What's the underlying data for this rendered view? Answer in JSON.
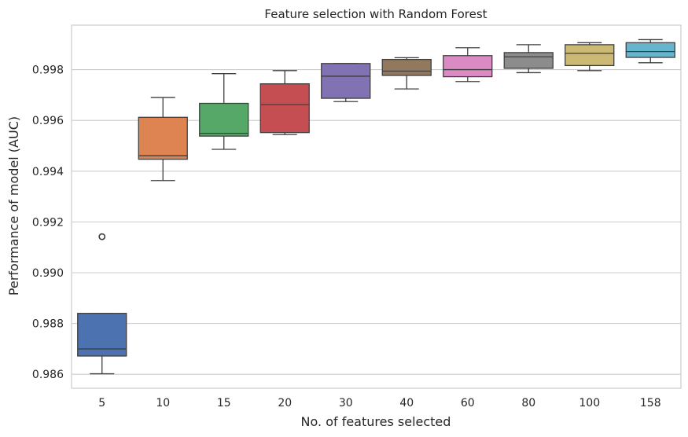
{
  "chart_data": {
    "type": "box",
    "title": "Feature selection with Random Forest",
    "xlabel": "No. of features selected",
    "ylabel": "Performance of model (AUC)",
    "ylim": [
      0.98545,
      0.99975
    ],
    "yticks": [
      "0.986",
      "0.988",
      "0.990",
      "0.992",
      "0.994",
      "0.996",
      "0.998"
    ],
    "grid": "horizontal",
    "categories": [
      "5",
      "10",
      "15",
      "20",
      "30",
      "40",
      "60",
      "80",
      "100",
      "158"
    ],
    "boxes": [
      {
        "category": "5",
        "whisker_low": 0.98602,
        "q1": 0.98672,
        "median": 0.987,
        "q3": 0.9884,
        "whisker_high": 0.9884,
        "outliers": [
          0.99142
        ],
        "color": "#4c72b0"
      },
      {
        "category": "10",
        "whisker_low": 0.99363,
        "q1": 0.99447,
        "median": 0.99461,
        "q3": 0.99612,
        "whisker_high": 0.9969,
        "outliers": [],
        "color": "#dd8452"
      },
      {
        "category": "15",
        "whisker_low": 0.99486,
        "q1": 0.99538,
        "median": 0.99549,
        "q3": 0.99667,
        "whisker_high": 0.99784,
        "outliers": [],
        "color": "#55a868"
      },
      {
        "category": "20",
        "whisker_low": 0.99544,
        "q1": 0.99552,
        "median": 0.99662,
        "q3": 0.99744,
        "whisker_high": 0.99796,
        "outliers": [],
        "color": "#c44e52"
      },
      {
        "category": "30",
        "whisker_low": 0.99674,
        "q1": 0.99687,
        "median": 0.99774,
        "q3": 0.99824,
        "whisker_high": 0.99824,
        "outliers": [],
        "color": "#8172b3"
      },
      {
        "category": "40",
        "whisker_low": 0.99724,
        "q1": 0.99777,
        "median": 0.99794,
        "q3": 0.9984,
        "whisker_high": 0.99847,
        "outliers": [],
        "color": "#937860"
      },
      {
        "category": "60",
        "whisker_low": 0.99753,
        "q1": 0.99772,
        "median": 0.998,
        "q3": 0.99855,
        "whisker_high": 0.99886,
        "outliers": [],
        "color": "#da8bc3"
      },
      {
        "category": "80",
        "whisker_low": 0.99788,
        "q1": 0.99805,
        "median": 0.9985,
        "q3": 0.99867,
        "whisker_high": 0.99898,
        "outliers": [],
        "color": "#8c8c8c"
      },
      {
        "category": "100",
        "whisker_low": 0.99796,
        "q1": 0.99816,
        "median": 0.99864,
        "q3": 0.99898,
        "whisker_high": 0.99906,
        "outliers": [],
        "color": "#ccb974"
      },
      {
        "category": "158",
        "whisker_low": 0.99827,
        "q1": 0.99848,
        "median": 0.99871,
        "q3": 0.99906,
        "whisker_high": 0.99918,
        "outliers": [],
        "color": "#64b5cd"
      }
    ]
  }
}
